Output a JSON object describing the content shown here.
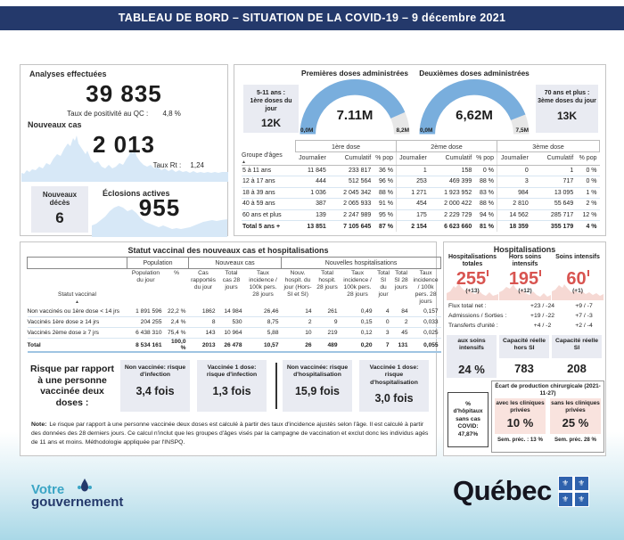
{
  "colors": {
    "header_bg": "#24396b",
    "accent_red": "#d85450",
    "gauge_blue": "#79aedd",
    "sparkline_blue": "#d7e8f7",
    "sparkline_pink": "#f6d9d4",
    "box_gray": "#e9ebf2",
    "pink_box": "#f9e3de",
    "footer_teal": "#3aa5c5",
    "flag_blue": "#2f62ad"
  },
  "header": {
    "title": "TABLEAU DE BORD – SITUATION DE LA COVID-19 – 9 décembre 2021"
  },
  "tests": {
    "title": "Analyses effectuées",
    "value": "39 835",
    "positivity_label": "Taux de positivité au QC :",
    "positivity_value": "4,8 %",
    "new_cases_label": "Nouveaux cas",
    "new_cases_value": "2 013",
    "rt_label": "Taux Rt :",
    "rt_value": "1,24",
    "deaths_label1": "Nouveaux",
    "deaths_label2": "décès",
    "deaths_value": "6",
    "outbreaks_label": "Éclosions actives",
    "outbreaks_value": "955"
  },
  "vaccination": {
    "side_left": {
      "line1": "5-11 ans :",
      "line2": "1ère doses du jour",
      "value": "12K"
    },
    "side_right": {
      "line1": "70 ans et plus :",
      "line2": "3ème doses du jour",
      "value": "13K"
    },
    "gauge1": {
      "title": "Premières doses administrées",
      "value": "7.11M",
      "min": "0,0M",
      "max": "8,2M",
      "fraction": 0.867,
      "dash": "229 400"
    },
    "gauge2": {
      "title": "Deuxièmes doses administrées",
      "value": "6,62M",
      "min": "0,0M",
      "max": "7,5M",
      "fraction": 0.883,
      "dash": "233 400"
    }
  },
  "doses_table": {
    "group_headers": [
      "1ère dose",
      "2ème dose",
      "3ème dose"
    ],
    "first_col_header": "Groupe d'âges",
    "sort_icon": "▲",
    "sub_headers": [
      "Journalier",
      "Cumulatif",
      "% pop",
      "Journalier",
      "Cumulatif",
      "% pop",
      "Journalier",
      "Cumulatif",
      "% pop"
    ],
    "rows": [
      [
        "5 à 11 ans",
        "11 845",
        "233 817",
        "36 %",
        "1",
        "158",
        "0 %",
        "0",
        "1",
        "0 %"
      ],
      [
        "12 à 17 ans",
        "444",
        "512 564",
        "96 %",
        "253",
        "469 399",
        "88 %",
        "3",
        "717",
        "0 %"
      ],
      [
        "18 à 39 ans",
        "1 036",
        "2 045 342",
        "88 %",
        "1 271",
        "1 923 952",
        "83 %",
        "984",
        "13 095",
        "1 %"
      ],
      [
        "40 à 59 ans",
        "387",
        "2 065 933",
        "91 %",
        "454",
        "2 000 422",
        "88 %",
        "2 810",
        "55 649",
        "2 %"
      ],
      [
        "60 ans et plus",
        "139",
        "2 247 989",
        "95 %",
        "175",
        "2 229 729",
        "94 %",
        "14 562",
        "285 717",
        "12 %"
      ],
      [
        "Total 5 ans +",
        "13 851",
        "7 105 645",
        "87 %",
        "2 154",
        "6 623 660",
        "81 %",
        "18 359",
        "355 179",
        "4 %"
      ]
    ]
  },
  "status_table": {
    "title": "Statut vaccinal des nouveaux cas et hospitalisations",
    "group_headers": [
      "Population",
      "Nouveaux cas",
      "Nouvelles hospitalisations"
    ],
    "first_col_header": "Statut vaccinal",
    "sort_icon": "▲",
    "sub_headers": [
      "Population du jour",
      "%",
      "Cas rapportés du jour",
      "Total cas 28 jours",
      "Taux incidence / 100k pers. 28 jours",
      "Nouv. hospit. du jour (Hors-SI et SI)",
      "Total hospit. 28 jours",
      "Taux incidence / 100k pers. 28 jours",
      "Total SI du jour",
      "Total SI 28 jours",
      "Taux incidence / 100k pers. 28 jours"
    ],
    "rows": [
      [
        "Non vaccinés ou 1ère dose < 14 jrs",
        "1 891 596",
        "22,2 %",
        "1862",
        "14 984",
        "26,46",
        "14",
        "261",
        "0,49",
        "4",
        "84",
        "0,157"
      ],
      [
        "Vaccinés 1ère dose ≥ 14 jrs",
        "204 255",
        "2,4 %",
        "8",
        "530",
        "8,75",
        "2",
        "9",
        "0,15",
        "0",
        "2",
        "0,033"
      ],
      [
        "Vaccinés 2ème dose ≥ 7 jrs",
        "6 438 310",
        "75,4 %",
        "143",
        "10 964",
        "5,88",
        "10",
        "219",
        "0,12",
        "3",
        "45",
        "0,025"
      ],
      [
        "Total",
        "8 534 161",
        "100,0 %",
        "2013",
        "26 478",
        "10,57",
        "26",
        "489",
        "0,20",
        "7",
        "131",
        "0,055"
      ]
    ]
  },
  "risk": {
    "label": "Risque par rapport à une personne vaccinée deux doses :",
    "boxes": [
      {
        "label": "Non vaccinée: risque d'infection",
        "value": "3,4 fois"
      },
      {
        "label": "Vaccinée 1 dose: risque d'infection",
        "value": "1,3 fois"
      },
      {
        "label": "Non vaccinée: risque d'hospitalisation",
        "value": "15,9 fois"
      },
      {
        "label": "Vaccinée 1 dose: risque d'hospitalisation",
        "value": "3,0 fois"
      }
    ],
    "note_label": "Note:",
    "note_text": "Le risque par rapport à une personne vaccinée deux doses est calculé à partir des taux d'incidence ajustés selon l'âge. Il est calculé à partir des données des 28 derniers jours. Ce calcul n'inclut que les groupes d'âges visés par la campagne de vaccination et exclut donc les individus agés de 11 ans et moins. Méthodologie appliquée par l'INSPQ."
  },
  "hospital": {
    "title": "Hospitalisations",
    "cols": [
      {
        "label": "Hospitalisations totales",
        "value": "255",
        "delta": "(+13)"
      },
      {
        "label": "Hors soins intensifs",
        "value": "195",
        "delta": "(+12)"
      },
      {
        "label": "Soins intensifs",
        "value": "60",
        "delta": "(+1)"
      }
    ],
    "flux_rows": [
      [
        "Flux total net :",
        "+23 / -24",
        "+9 / -7"
      ],
      [
        "Admissions / Sorties :",
        "+19 / -22",
        "+7 / -3"
      ],
      [
        "Transferts d'unité :",
        "+4 / -2",
        "+2 / -4"
      ]
    ],
    "icu_box": {
      "label": "aux soins intensifs",
      "value": "24 %"
    },
    "cap_hors": {
      "label": "Capacité réelle hors SI",
      "value": "783"
    },
    "cap_si": {
      "label": "Capacité réelle SI",
      "value": "208"
    },
    "surgical": {
      "title": "Écart de production chirurgicale (2021-11-27)",
      "no_covid_box": "% d'hôpitaux sans cas COVID: 47,87%",
      "with_private": {
        "label": "avec les cliniques privées",
        "value": "10 %",
        "prev": "Sem. préc. : 13 %"
      },
      "without_private": {
        "label": "sans les cliniques privées",
        "value": "25 %",
        "prev": "Sem. préc.  28 %"
      }
    }
  },
  "footer": {
    "gov_line1": "Votre",
    "gov_line2": "gouvernement",
    "wordmark": "Québec",
    "fleur_icon": "⚜"
  }
}
